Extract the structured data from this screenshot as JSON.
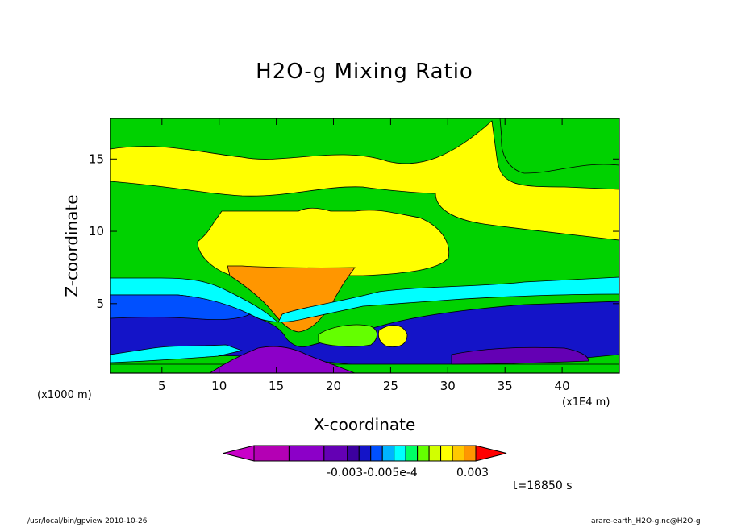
{
  "chart_data": {
    "type": "contour",
    "title": "H2O-g Mixing Ratio",
    "xlabel": "X-coordinate",
    "ylabel": "Z-coordinate",
    "x_scale_note": "(x1000 m)",
    "x_scale_note2": "(x1E4 m)",
    "x_ticks": [
      5,
      10,
      15,
      20,
      25,
      30,
      35,
      40
    ],
    "y_ticks": [
      5,
      10,
      15
    ],
    "xlim": [
      0.5,
      45
    ],
    "ylim": [
      0.2,
      17.8
    ],
    "colorbar_tick_labels": [
      "-0.003-0.005e-4",
      "0.003"
    ],
    "colorbar_colors": [
      "#c800c8",
      "#b400b4",
      "#8c00c8",
      "#6400b4",
      "#3c00a0",
      "#1414c8",
      "#0050ff",
      "#00b4ff",
      "#00ffff",
      "#00ff64",
      "#64ff00",
      "#d2ff00",
      "#ffff00",
      "#ffc800",
      "#ff9600",
      "#ff0000"
    ],
    "time_label": "t=18850  s"
  },
  "footer": {
    "left": "/usr/local/bin/gpview   2010-10-26",
    "right": "arare-earth_H2O-g.nc@H2O-g"
  }
}
